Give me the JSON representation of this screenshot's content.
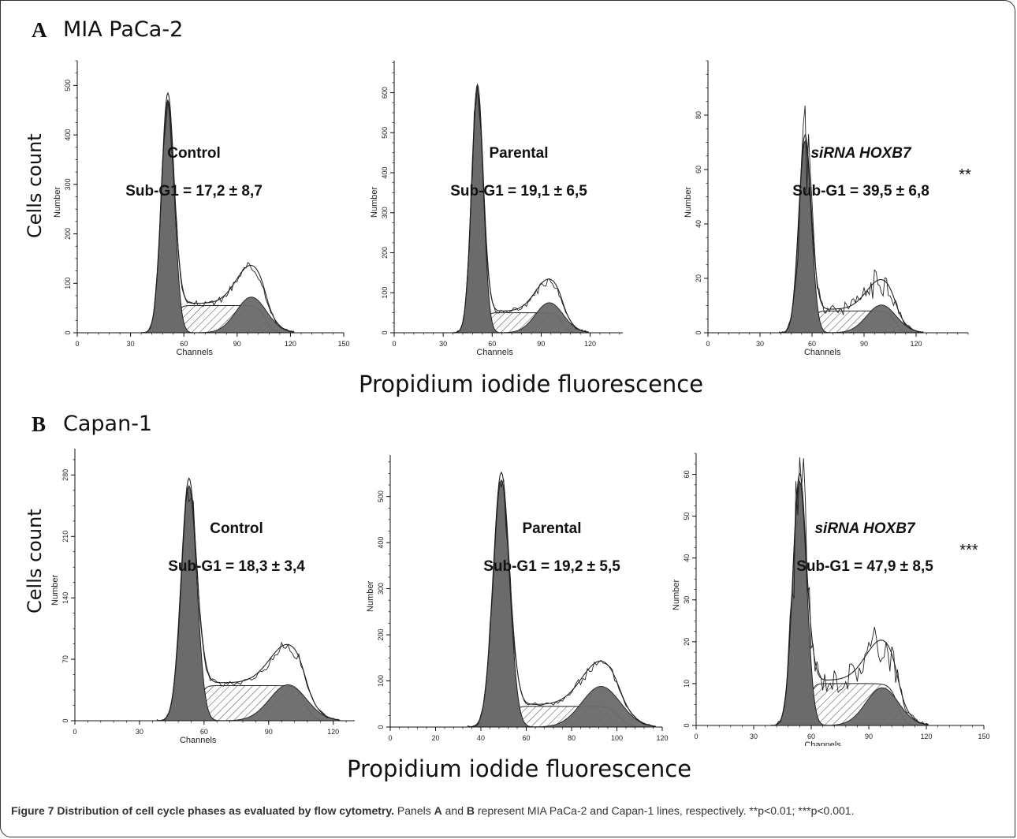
{
  "panels": [
    {
      "letter": "A",
      "line": "MIA PaCa-2",
      "y_label": "Cells count",
      "x_label": "Propidium iodide fluorescence"
    },
    {
      "letter": "B",
      "line": "Capan-1",
      "y_label": "Cells count",
      "x_label": "Propidium iodide fluorescence"
    }
  ],
  "caption": {
    "title": "Figure 7 Distribution of cell cycle phases as evaluated by flow cytometry.",
    "t1": " Panels ",
    "a": "A",
    "t2": " and ",
    "b": "B",
    "t3": " represent MIA PaCa-2 and Capan-1 lines, respectively. **p<0.01; ***p<0.001."
  },
  "colors": {
    "filled": "#6b6b6b",
    "outline": "#222222",
    "hatch": "#444444"
  },
  "chart_data": [
    {
      "type": "area",
      "panel": "A",
      "condition": "Control",
      "stat": "Sub-G1 = 17,2 ± 8,7",
      "significance": "",
      "xlabel": "Channels",
      "ylabel": "Number",
      "xlim": [
        0,
        150
      ],
      "xticks": [
        0,
        30,
        60,
        90,
        120,
        150
      ],
      "ylim": [
        0,
        550
      ],
      "yticks": [
        0,
        100,
        200,
        300,
        400,
        500
      ],
      "g1_peak": {
        "x": 51,
        "y": 500
      },
      "g2_peak": {
        "x": 98,
        "y": 105
      },
      "s_level": 55
    },
    {
      "type": "area",
      "panel": "A",
      "condition": "Parental",
      "stat": "Sub-G1 = 19,1 ± 6,5",
      "significance": "",
      "xlabel": "Channels",
      "ylabel": "Number",
      "xlim": [
        0,
        140
      ],
      "xticks": [
        0,
        30,
        60,
        90,
        120
      ],
      "ylim": [
        0,
        680
      ],
      "yticks": [
        0,
        100,
        200,
        300,
        400,
        500,
        600
      ],
      "g1_peak": {
        "x": 51,
        "y": 640
      },
      "g2_peak": {
        "x": 95,
        "y": 105
      },
      "s_level": 50
    },
    {
      "type": "area",
      "panel": "A",
      "condition": "siRNA HOXB7",
      "stat": "Sub-G1 = 39,5 ± 6,8",
      "significance": "**",
      "xlabel": "Channels",
      "ylabel": "Number",
      "xlim": [
        0,
        150
      ],
      "xticks": [
        0,
        30,
        60,
        90,
        120
      ],
      "ylim": [
        0,
        100
      ],
      "yticks": [
        0,
        20,
        40,
        60,
        80
      ],
      "g1_peak": {
        "x": 56,
        "y": 75
      },
      "g2_peak": {
        "x": 100,
        "y": 15
      },
      "s_level": 8
    },
    {
      "type": "area",
      "panel": "B",
      "condition": "Control",
      "stat": "Sub-G1 = 18,3 ± 3,4",
      "significance": "",
      "xlabel": "Channels",
      "ylabel": "Number",
      "xlim": [
        0,
        130
      ],
      "xticks": [
        0,
        30,
        60,
        90,
        120
      ],
      "ylim": [
        0,
        310
      ],
      "yticks": [
        0,
        70,
        140,
        210,
        280
      ],
      "g1_peak": {
        "x": 53,
        "y": 285
      },
      "g2_peak": {
        "x": 99,
        "y": 65
      },
      "s_level": 40
    },
    {
      "type": "area",
      "panel": "B",
      "condition": "Parental",
      "stat": "Sub-G1 = 19,2 ± 5,5",
      "significance": "",
      "xlabel": "",
      "ylabel": "Number",
      "xlim": [
        0,
        120
      ],
      "xticks": [
        0,
        20,
        40,
        60,
        80,
        100,
        120
      ],
      "ylim": [
        0,
        590
      ],
      "yticks": [
        0,
        100,
        200,
        300,
        400,
        500
      ],
      "g1_peak": {
        "x": 49,
        "y": 570
      },
      "g2_peak": {
        "x": 93,
        "y": 115
      },
      "s_level": 45
    },
    {
      "type": "area",
      "panel": "B",
      "condition": "siRNA HOXB7",
      "stat": "Sub-G1 = 47,9 ± 8,5",
      "significance": "***",
      "xlabel": "Channels",
      "ylabel": "Number",
      "xlim": [
        0,
        150
      ],
      "xticks": [
        0,
        30,
        60,
        90,
        120,
        150
      ],
      "ylim": [
        0,
        65
      ],
      "yticks": [
        0,
        10,
        20,
        30,
        40,
        50,
        60
      ],
      "g1_peak": {
        "x": 54,
        "y": 62
      },
      "g2_peak": {
        "x": 97,
        "y": 15
      },
      "s_level": 10
    }
  ]
}
